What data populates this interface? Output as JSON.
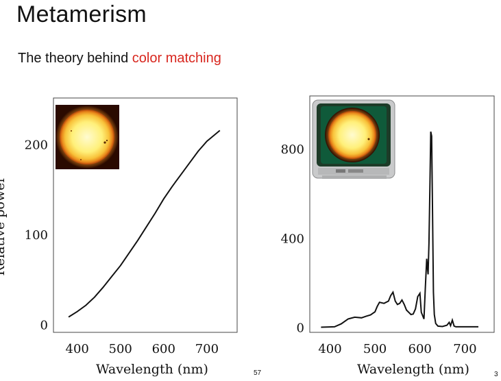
{
  "slide": {
    "title": "Metamerism",
    "subtitle_prefix": "The theory behind ",
    "subtitle_highlight": "color matching",
    "page_number": "57",
    "corner_fragment": "3"
  },
  "colors": {
    "accent": "#d8261e",
    "line": "#111111",
    "sun_core": "#fff07a",
    "sun_edge": "#f2a21a"
  },
  "icons": {
    "sun": "sun-photo",
    "tv": "crt-tv-with-sun"
  },
  "chart_data": [
    {
      "type": "line",
      "title": "",
      "xlabel": "Wavelength (nm)",
      "ylabel": "Relative power",
      "xlim": [
        345,
        770
      ],
      "ylim": [
        -8,
        252
      ],
      "xticks": [
        "400",
        "500",
        "600",
        "700"
      ],
      "yticks": [
        "0",
        "100",
        "200"
      ],
      "grid": false,
      "series": [
        {
          "x": [
            380,
            400,
            420,
            440,
            460,
            480,
            500,
            520,
            540,
            560,
            580,
            600,
            620,
            640,
            660,
            680,
            700,
            720,
            730
          ],
          "y": [
            9,
            15,
            22,
            31,
            42,
            54,
            66,
            80,
            94,
            109,
            124,
            140,
            154,
            167,
            180,
            193,
            204,
            212,
            216
          ]
        }
      ]
    },
    {
      "type": "line",
      "title": "",
      "xlabel": "Wavelength (nm)",
      "ylabel": "",
      "xlim": [
        355,
        765
      ],
      "ylim": [
        -20,
        1040
      ],
      "xticks": [
        "400",
        "500",
        "600",
        "700"
      ],
      "yticks": [
        "0",
        "400",
        "800"
      ],
      "grid": false,
      "series": [
        {
          "x": [
            380,
            410,
            425,
            440,
            455,
            470,
            480,
            490,
            500,
            505,
            510,
            520,
            530,
            535,
            540,
            545,
            550,
            555,
            560,
            565,
            570,
            575,
            580,
            585,
            590,
            595,
            600,
            603,
            606,
            609,
            612,
            615,
            618,
            620,
            622,
            624,
            626,
            628,
            630,
            632,
            635,
            640,
            650,
            660,
            665,
            668,
            672,
            676,
            680,
            700,
            730
          ],
          "y": [
            3,
            5,
            18,
            40,
            48,
            45,
            52,
            58,
            72,
            96,
            115,
            110,
            120,
            145,
            160,
            120,
            105,
            110,
            125,
            105,
            80,
            70,
            60,
            62,
            85,
            140,
            155,
            70,
            55,
            40,
            180,
            310,
            240,
            380,
            620,
            880,
            860,
            520,
            160,
            60,
            20,
            8,
            6,
            12,
            25,
            10,
            35,
            8,
            5,
            5,
            5
          ]
        }
      ]
    }
  ]
}
